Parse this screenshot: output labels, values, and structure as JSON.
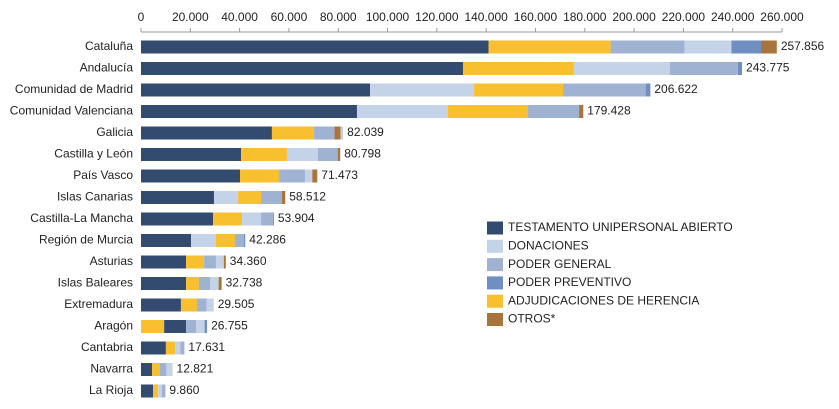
{
  "chart_data": {
    "type": "stacked_bar_horizontal",
    "categories": [
      "Cataluña",
      "Andalucía",
      "Comunidad de Madrid",
      "Comunidad Valenciana",
      "Galicia",
      "Castilla y León",
      "País Vasco",
      "Islas Canarias",
      "Castilla-La Mancha",
      "Región de Murcia",
      "Asturias",
      "Islas Baleares",
      "Extremadura",
      "Aragón",
      "Cantabria",
      "Navarra",
      "La Rioja"
    ],
    "series": [
      {
        "name": "TESTAMENTO UNIPERSONAL ABIERTO",
        "color": "#334b6e",
        "values": [
          141000,
          130600,
          92900,
          87600,
          53100,
          40600,
          40200,
          29600,
          29200,
          20300,
          18300,
          18300,
          16200,
          8900,
          10100,
          4500,
          4900
        ]
      },
      {
        "name": "DONACIONES",
        "color": "#c5d3e8",
        "values": [
          19000,
          39000,
          42200,
          36900,
          1000,
          12600,
          3000,
          9800,
          7700,
          10100,
          3200,
          3500,
          2900,
          3500,
          2200,
          2500,
          1500
        ]
      },
      {
        "name": "PODER GENERAL",
        "color": "#9fb2d1",
        "values": [
          30000,
          27500,
          33500,
          20700,
          8300,
          8000,
          10500,
          8500,
          4800,
          3700,
          4800,
          4500,
          3900,
          4000,
          1600,
          2600,
          1400
        ]
      },
      {
        "name": "PODER PREVENTIVO",
        "color": "#6e8fc0",
        "values": [
          12000,
          1700,
          1900,
          0,
          0,
          0,
          0,
          0,
          400,
          500,
          0,
          0,
          0,
          1000,
          0,
          0,
          0
        ]
      },
      {
        "name": "ADJUDICACIONES DE HERENCIA",
        "color": "#f8bf2f",
        "values": [
          49500,
          45000,
          36100,
          32500,
          17100,
          18600,
          15800,
          9300,
          11800,
          7700,
          7300,
          5200,
          6500,
          9400,
          3700,
          3200,
          2100
        ]
      },
      {
        "name": "OTROS*",
        "color": "#a8743b",
        "values": [
          6400,
          0,
          0,
          1700,
          2500,
          1000,
          2000,
          1300,
          0,
          0,
          800,
          1200,
          0,
          0,
          0,
          0,
          0
        ]
      }
    ],
    "totals": [
      {
        "value": 257856,
        "label": "257.856"
      },
      {
        "value": 243775,
        "label": "243.775"
      },
      {
        "value": 206622,
        "label": "206.622"
      },
      {
        "value": 179428,
        "label": "179.428"
      },
      {
        "value": 82039,
        "label": "82.039"
      },
      {
        "value": 80798,
        "label": "80.798"
      },
      {
        "value": 71473,
        "label": "71.473"
      },
      {
        "value": 58512,
        "label": "58.512"
      },
      {
        "value": 53904,
        "label": "53.904"
      },
      {
        "value": 42286,
        "label": "42.286"
      },
      {
        "value": 34360,
        "label": "34.360"
      },
      {
        "value": 32738,
        "label": "32.738"
      },
      {
        "value": 29505,
        "label": "29.505"
      },
      {
        "value": 26755,
        "label": "26.755"
      },
      {
        "value": 17631,
        "label": "17.631"
      },
      {
        "value": 12821,
        "label": "12.821"
      },
      {
        "value": 9860,
        "label": "9.860"
      }
    ],
    "xlim": [
      0,
      260000
    ],
    "xticks": [
      0,
      {
        "value": 20000,
        "label": "20.000"
      },
      {
        "value": 40000,
        "label": "40.000"
      },
      {
        "value": 60000,
        "label": "60.000"
      },
      {
        "value": 80000,
        "label": "80.000"
      },
      {
        "value": 100000,
        "label": "100.000"
      },
      {
        "value": 120000,
        "label": "120.000"
      },
      {
        "value": 140000,
        "label": "140.000"
      },
      {
        "value": 160000,
        "label": "160.000"
      },
      {
        "value": 180000,
        "label": "180.000"
      },
      {
        "value": 200000,
        "label": "200.000"
      },
      {
        "value": 220000,
        "label": "220.000"
      },
      {
        "value": 240000,
        "label": "240.000"
      },
      {
        "value": 260000,
        "label": "260.000"
      }
    ]
  }
}
